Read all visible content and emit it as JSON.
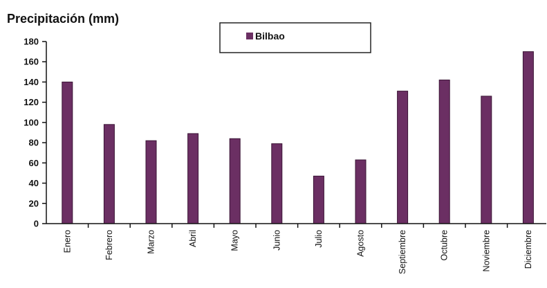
{
  "chart_data": {
    "type": "bar",
    "title": "Precipitación (mm)",
    "xlabel": "",
    "ylabel": "",
    "categories": [
      "Enero",
      "Febrero",
      "Marzo",
      "Abril",
      "Mayo",
      "Junio",
      "Julio",
      "Agosto",
      "Septiembre",
      "Octubre",
      "Noviembre",
      "Diciembre"
    ],
    "series": [
      {
        "name": "Bilbao",
        "values": [
          140,
          98,
          82,
          89,
          84,
          79,
          47,
          63,
          131,
          142,
          126,
          170
        ]
      }
    ],
    "ylim": [
      0,
      180
    ],
    "yticks": [
      0,
      20,
      40,
      60,
      80,
      100,
      120,
      140,
      160,
      180
    ],
    "grid": false,
    "legend_position": "top",
    "colors": {
      "bar": "#6b2f63",
      "bar_edge": "#3a1435"
    }
  }
}
